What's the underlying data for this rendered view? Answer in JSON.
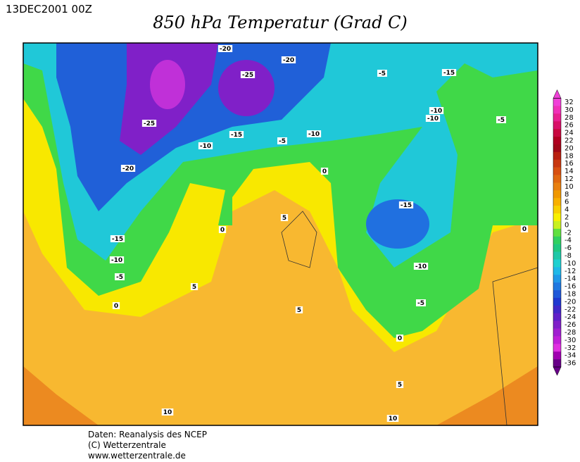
{
  "header": {
    "date": "13DEC2001 00Z",
    "title": "850 hPa Temperatur (Grad C)"
  },
  "contour_labels": [
    -20,
    -20,
    -25,
    -5,
    -15,
    -25,
    -15,
    -5,
    -10,
    -10,
    -10,
    -5,
    -10,
    -20,
    0,
    -15,
    0,
    5,
    0,
    -15,
    -10,
    -5,
    -10,
    5,
    0,
    5,
    -5,
    0,
    5,
    10,
    10
  ],
  "colorbar": {
    "ticks": [
      32,
      30,
      28,
      26,
      24,
      22,
      20,
      18,
      16,
      14,
      12,
      10,
      8,
      6,
      4,
      2,
      0,
      -2,
      -4,
      -6,
      -8,
      -10,
      -12,
      -14,
      -16,
      -18,
      -20,
      -22,
      -24,
      -26,
      -28,
      -30,
      -32,
      -34,
      -36
    ],
    "colors": [
      "#f040d8",
      "#f030b8",
      "#e82090",
      "#d81068",
      "#c80840",
      "#b00020",
      "#a00818",
      "#b82010",
      "#c83810",
      "#d85010",
      "#e06810",
      "#e88010",
      "#f09800",
      "#f8b000",
      "#f8d000",
      "#f8f000",
      "#c8f020",
      "#60e040",
      "#30d060",
      "#20c880",
      "#20c8a8",
      "#20d0d0",
      "#20b8e8",
      "#2098e8",
      "#2078e0",
      "#2058d8",
      "#2038d0",
      "#4028c8",
      "#6020c8",
      "#8020c8",
      "#a020d0",
      "#c020d8",
      "#e030e0",
      "#a000b0",
      "#680088"
    ]
  },
  "footer": {
    "lines": [
      "Daten: Reanalysis des NCEP",
      "(C) Wetterzentrale",
      "www.wetterzentrale.de"
    ]
  }
}
